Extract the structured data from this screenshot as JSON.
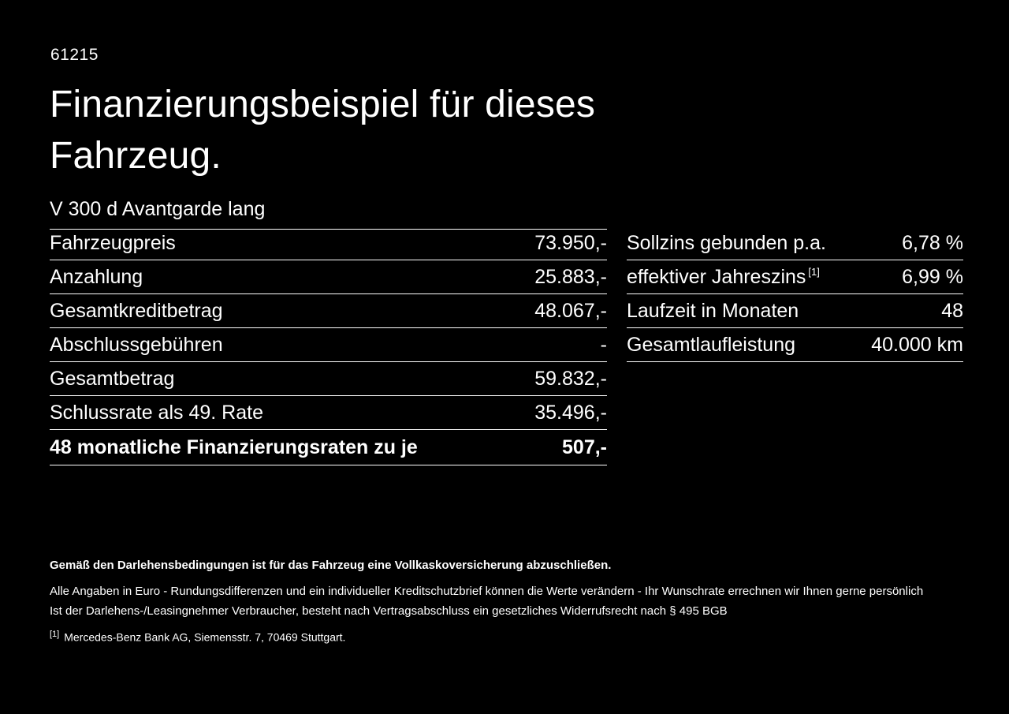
{
  "page": {
    "ref_number": "61215",
    "title_line1": "Finanzierungsbeispiel für dieses",
    "title_line2": "Fahrzeug.",
    "vehicle_name": "V 300 d Avantgarde lang"
  },
  "left_table": {
    "rows": [
      {
        "label": "Fahrzeugpreis",
        "value": "73.950,-"
      },
      {
        "label": "Anzahlung",
        "value": "25.883,-"
      },
      {
        "label": "Gesamtkreditbetrag",
        "value": "48.067,-"
      },
      {
        "label": "Abschlussgebühren",
        "value": "-"
      },
      {
        "label": "Gesamtbetrag",
        "value": "59.832,-"
      },
      {
        "label": "Schlussrate als 49. Rate",
        "value": "35.496,-"
      },
      {
        "label": "48 monatliche Finanzierungsraten zu je",
        "value": "507,-"
      }
    ]
  },
  "right_table": {
    "rows": [
      {
        "label": "Sollzins gebunden p.a.",
        "sup": "",
        "value": "6,78 %"
      },
      {
        "label": "effektiver Jahreszins",
        "sup": "[1]",
        "value": "6,99 %"
      },
      {
        "label": "Laufzeit in Monaten",
        "sup": "",
        "value": "48"
      },
      {
        "label": "Gesamtlaufleistung",
        "sup": "",
        "value": "40.000 km"
      }
    ]
  },
  "footer": {
    "bold_note": "Gemäß den Darlehensbedingungen ist für das Fahrzeug eine Vollkaskoversicherung abzuschließen.",
    "note1": "Alle Angaben in Euro - Rundungsdifferenzen und ein individueller Kreditschutzbrief können die Werte verändern - Ihr Wunschrate errechnen wir Ihnen gerne persönlich",
    "note2": "Ist der Darlehens-/Leasingnehmer Verbraucher, besteht nach Vertragsabschluss ein gesetzliches Widerrufsrecht nach § 495 BGB",
    "footnote_marker": "[1]",
    "footnote_text": "Mercedes-Benz Bank AG, Siemensstr. 7, 70469 Stuttgart."
  },
  "colors": {
    "background": "#000000",
    "text": "#ffffff",
    "divider": "#ffffff"
  }
}
